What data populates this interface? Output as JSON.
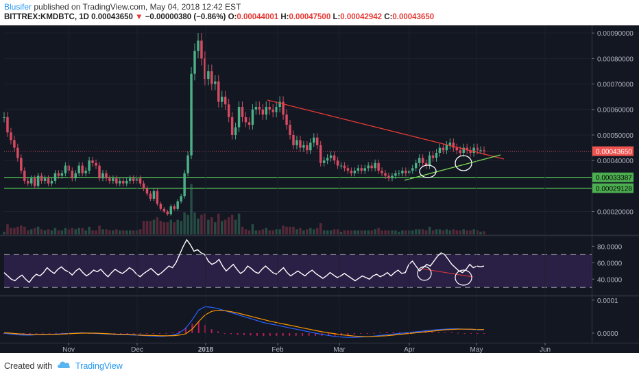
{
  "header": {
    "author": "Blusifer",
    "published_text": " published on TradingView.com, May 04, 2018 12:42 EST",
    "symbol": "BITTREX:KMDBTC, 1D",
    "price": "0.00043650",
    "change_arrow": "▼",
    "change": "−0.00000380 (−0.86%)",
    "o_label": "O:",
    "o_value": "0.00044001",
    "h_label": "H:",
    "h_value": "0.00047500",
    "l_label": "L:",
    "l_value": "0.00042942",
    "c_label": "C:",
    "c_value": "0.00043650"
  },
  "footer": {
    "created_with": "Created with",
    "brand": "TradingView"
  },
  "colors": {
    "background": "#131722",
    "up": "#4caf87",
    "down": "#d64a62",
    "trendline_red": "#e53935",
    "trendline_green": "#7ed957",
    "support_green": "#4caf50",
    "rsi_band": "#2a1f45",
    "macd_blue": "#2962ff",
    "macd_orange": "#ff9800",
    "histogram": "#e91e63"
  },
  "chart_data": [
    {
      "type": "candlestick",
      "x_ticks": [
        "Nov",
        "Dec",
        "2018",
        "Feb",
        "Mar",
        "Apr",
        "May",
        "Jun"
      ],
      "y_ticks": [
        "0.00090000",
        "0.00080000",
        "0.00070000",
        "0.00060000",
        "0.00050000",
        "0.00040000",
        "0.00020000"
      ],
      "ylim": [
        0.00011,
        0.00093
      ],
      "price_labels": {
        "last": "0.00043650",
        "support_1": "0.00033387",
        "support_2": "0.00029128"
      },
      "support_levels": [
        0.00033387,
        0.00029128
      ],
      "last_price": 0.0004365,
      "close_series": [
        0.00057,
        0.00051,
        0.00048,
        0.00045,
        0.00041,
        0.00036,
        0.00032,
        0.00031,
        0.00033,
        0.0003,
        0.00034,
        0.00032,
        0.00033,
        0.00031,
        0.00032,
        0.00035,
        0.00034,
        0.00035,
        0.00038,
        0.00036,
        0.00033,
        0.00035,
        0.00038,
        0.00035,
        0.00036,
        0.0004,
        0.00039,
        0.00038,
        0.00033,
        0.00035,
        0.00033,
        0.00032,
        0.00033,
        0.00031,
        0.00032,
        0.00031,
        0.00032,
        0.00033,
        0.00032,
        0.00033,
        0.00031,
        0.00029,
        0.00027,
        0.00025,
        0.00028,
        0.00023,
        0.00021,
        0.0002,
        0.00019,
        0.00022,
        0.00021,
        0.00024,
        0.00026,
        0.00035,
        0.00042,
        0.00074,
        0.00083,
        0.00087,
        0.0008,
        0.00072,
        0.00075,
        0.0007,
        0.00071,
        0.00063,
        0.00065,
        0.00062,
        0.00057,
        0.0005,
        0.00053,
        0.00061,
        0.00057,
        0.00055,
        0.00054,
        0.0006,
        0.00061,
        0.0006,
        0.00058,
        0.00061,
        0.0006,
        0.00059,
        0.00061,
        0.00063,
        0.00058,
        0.00054,
        0.0005,
        0.00046,
        0.00048,
        0.00045,
        0.00046,
        0.00044,
        0.00047,
        0.00049,
        0.00046,
        0.00039,
        0.0004,
        0.00041,
        0.00042,
        0.0004,
        0.00038,
        0.00038,
        0.00037,
        0.00036,
        0.00035,
        0.00036,
        0.00037,
        0.00036,
        0.00037,
        0.00038,
        0.00037,
        0.00039,
        0.00036,
        0.00035,
        0.00034,
        0.00033,
        0.00034,
        0.00035,
        0.00035,
        0.00036,
        0.00035,
        0.00036,
        0.00037,
        0.00039,
        0.00041,
        0.00039,
        0.00038,
        0.00042,
        0.00041,
        0.00043,
        0.00045,
        0.00044,
        0.00046,
        0.00047,
        0.00045,
        0.00044,
        0.00043,
        0.00045,
        0.00044,
        0.00043,
        0.00045,
        0.00044,
        0.00044,
        0.0004365
      ]
    },
    {
      "type": "line",
      "name": "RSI",
      "y_ticks": [
        "80.0000",
        "60.0000",
        "40.0000"
      ],
      "ylim": [
        21,
        92
      ],
      "bands": [
        30,
        70
      ],
      "values": [
        48,
        44,
        40,
        38,
        42,
        45,
        40,
        36,
        42,
        46,
        44,
        48,
        54,
        50,
        47,
        52,
        55,
        51,
        49,
        45,
        50,
        53,
        48,
        44,
        47,
        51,
        49,
        52,
        47,
        43,
        48,
        52,
        49,
        47,
        50,
        54,
        51,
        46,
        43,
        47,
        50,
        53,
        49,
        45,
        48,
        52,
        56,
        54,
        60,
        70,
        80,
        88,
        82,
        74,
        76,
        72,
        70,
        62,
        58,
        60,
        64,
        56,
        50,
        54,
        58,
        52,
        47,
        50,
        56,
        53,
        49,
        47,
        52,
        56,
        52,
        48,
        46,
        50,
        54,
        48,
        44,
        47,
        50,
        47,
        44,
        48,
        51,
        47,
        44,
        41,
        44,
        48,
        45,
        42,
        44,
        47,
        44,
        41,
        38,
        41,
        44,
        42,
        40,
        44,
        46,
        43,
        45,
        48,
        44,
        48,
        51,
        47,
        48,
        58,
        62,
        56,
        50,
        54,
        58,
        56,
        62,
        68,
        72,
        70,
        64,
        58,
        54,
        50,
        48,
        52,
        58,
        54,
        56,
        55,
        56
      ]
    },
    {
      "type": "line",
      "name": "MACD",
      "y_ticks": [
        "0.0001",
        "0.0000"
      ],
      "ylim": [
        -2.5e-05,
        0.00011
      ],
      "series": [
        {
          "values": [
            0.0,
            -3e-06,
            -5e-06,
            -6e-06,
            -6e-06,
            -5e-06,
            -4e-06,
            -4e-06,
            -3e-06,
            -2e-06,
            -1e-06,
            0.0,
            1e-06,
            0.0,
            -1e-06,
            -2e-06,
            -3e-06,
            -4e-06,
            -5e-06,
            -5e-06,
            -6e-06,
            -7e-06,
            -8e-06,
            -9e-06,
            -1e-05,
            -9e-06,
            -6e-06,
            0.0,
            1.5e-05,
            4e-05,
            7e-05,
            8e-05,
            7.8e-05,
            7.4e-05,
            6.8e-05,
            6.2e-05,
            5.6e-05,
            5e-05,
            4.4e-05,
            3.8e-05,
            3.2e-05,
            2.8e-05,
            2.4e-05,
            2e-05,
            1.6e-05,
            1.2e-05,
            8e-06,
            4e-06,
            0.0,
            -4e-06,
            -7e-06,
            -1e-05,
            -1.2e-05,
            -1.3e-05,
            -1.3e-05,
            -1.2e-05,
            -1.1e-05,
            -9e-06,
            -7e-06,
            -5e-06,
            -3e-06,
            -1e-06,
            1e-06,
            3e-06,
            5e-06,
            7e-06,
            9e-06,
            1.1e-05,
            1.2e-05,
            1.3e-05,
            1.3e-05,
            1.2e-05,
            1.1e-05,
            1e-05,
            1e-05
          ]
        },
        {
          "values": [
            1e-06,
            0.0,
            -2e-06,
            -3e-06,
            -4e-06,
            -5e-06,
            -5e-06,
            -4e-06,
            -4e-06,
            -3e-06,
            -2e-06,
            -1e-06,
            0.0,
            0.0,
            0.0,
            -1e-06,
            -2e-06,
            -3e-06,
            -4e-06,
            -4e-06,
            -5e-06,
            -6e-06,
            -7e-06,
            -7e-06,
            -8e-06,
            -8e-06,
            -8e-06,
            -6e-06,
            -2e-06,
            1.2e-05,
            3.5e-05,
            5.5e-05,
            6.6e-05,
            6.9e-05,
            6.8e-05,
            6.5e-05,
            6.1e-05,
            5.6e-05,
            5.1e-05,
            4.6e-05,
            4.1e-05,
            3.6e-05,
            3.2e-05,
            2.8e-05,
            2.4e-05,
            2e-05,
            1.6e-05,
            1.2e-05,
            8e-06,
            4e-06,
            1e-06,
            -2e-06,
            -5e-06,
            -7e-06,
            -9e-06,
            -1e-05,
            -1.1e-05,
            -1e-05,
            -9e-06,
            -8e-06,
            -6e-06,
            -4e-06,
            -2e-06,
            0.0,
            2e-06,
            4e-06,
            6e-06,
            8e-06,
            1e-05,
            1.1e-05,
            1.2e-05,
            1.2e-05,
            1.2e-05,
            1.1e-05,
            1.1e-05
          ]
        }
      ]
    }
  ]
}
